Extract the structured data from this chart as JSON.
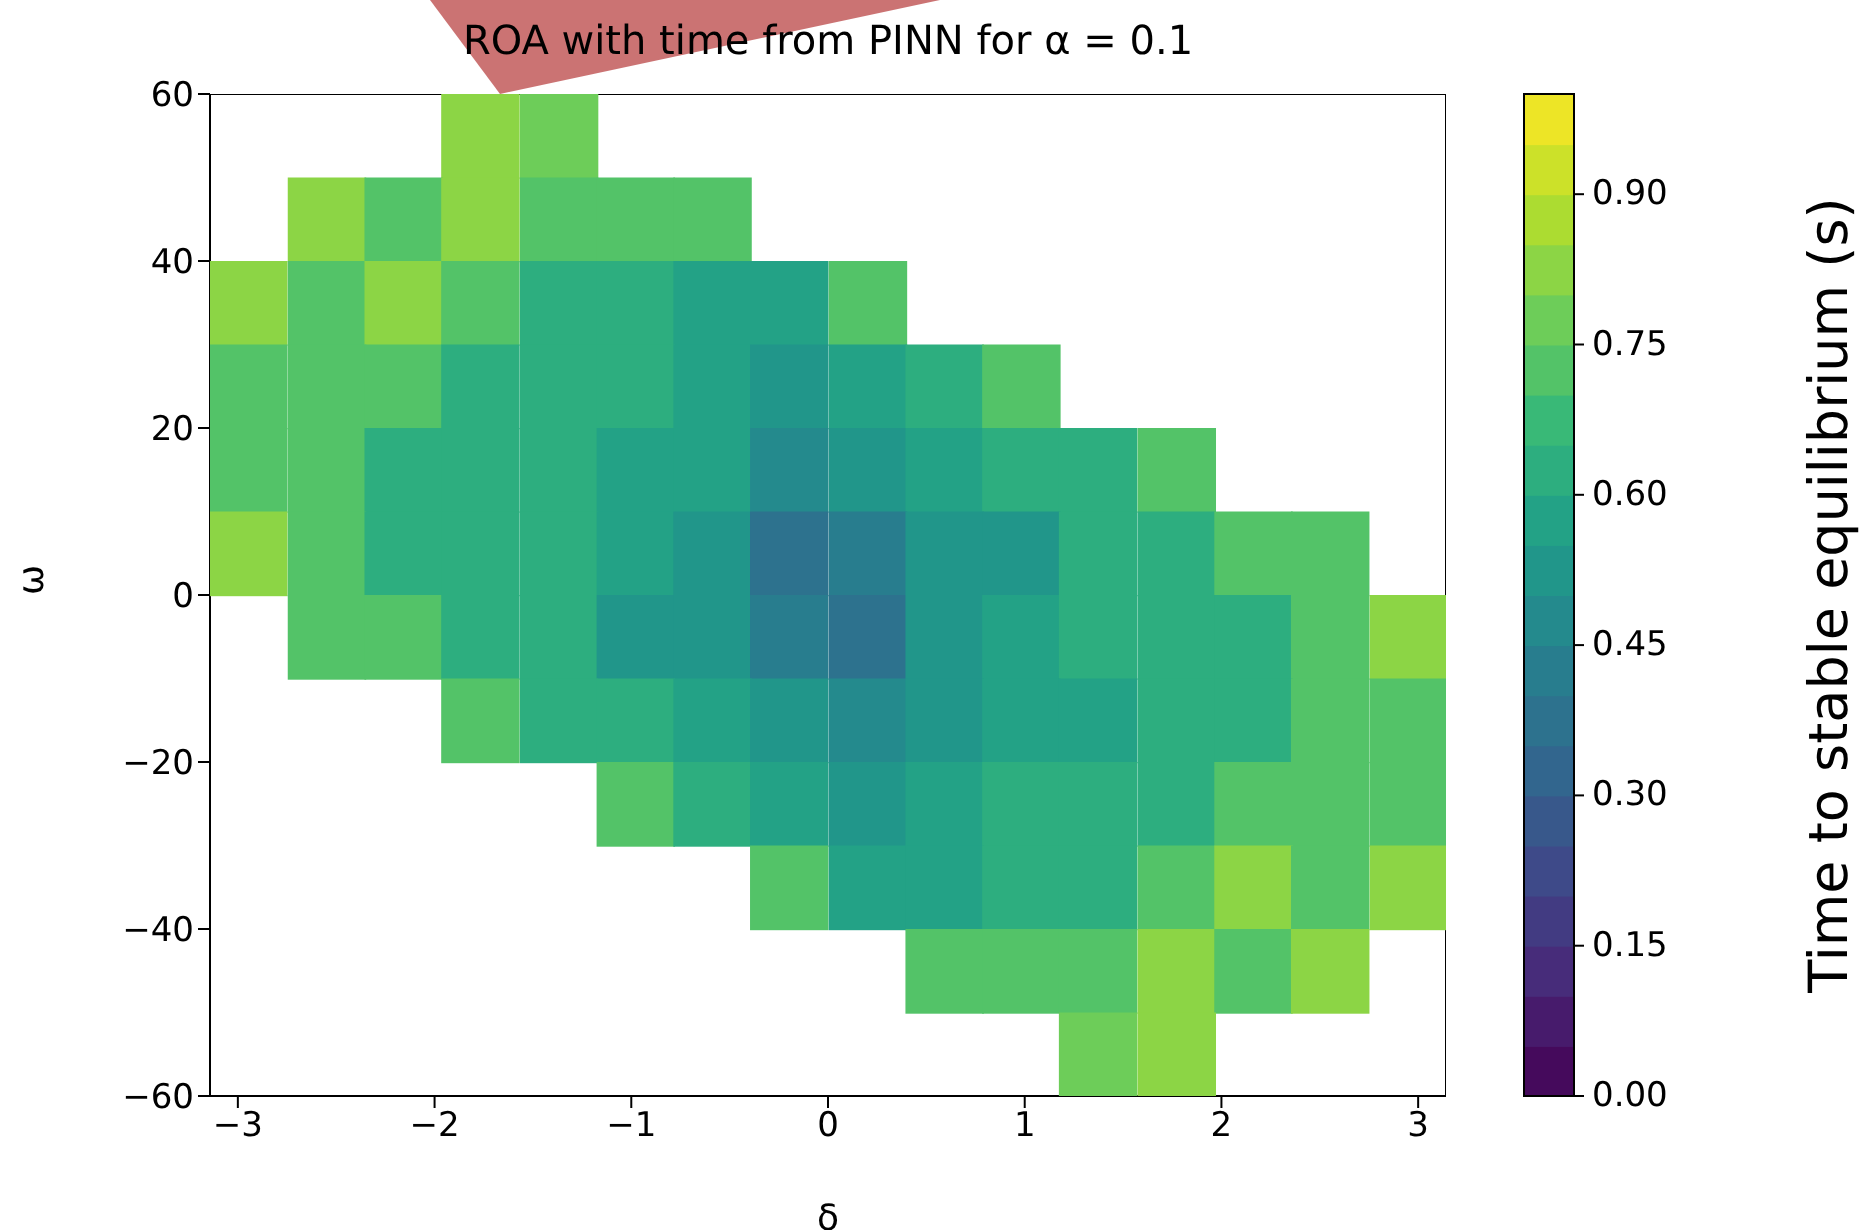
{
  "chart_data": {
    "type": "scatter",
    "title": "ROA with time from PINN for α = 0.1",
    "xlabel": "δ",
    "ylabel": "ω",
    "clabel": "Time to stable equilibrium (s)",
    "marker": "square",
    "xlim": [
      -3.1416,
      3.1416
    ],
    "xticks": [
      {
        "value": -3,
        "label": "−3"
      },
      {
        "value": -2,
        "label": "−2"
      },
      {
        "value": -1,
        "label": "−1"
      },
      0,
      1,
      2,
      3
    ],
    "ylim": [
      -60,
      60
    ],
    "yticks": [
      {
        "value": -60,
        "label": "−60"
      },
      {
        "value": -40,
        "label": "−40"
      },
      {
        "value": -20,
        "label": "−20"
      },
      0,
      20,
      40,
      60
    ],
    "clim": [
      0,
      1
    ],
    "cticks": [
      {
        "value": 0,
        "label": "0.00"
      },
      0.15,
      {
        "value": 0.3,
        "label": "0.30"
      },
      0.45,
      {
        "value": 0.6,
        "label": "0.60"
      },
      0.75,
      {
        "value": 0.9,
        "label": "0.90"
      }
    ],
    "x": [
      -1.77,
      -1.37,
      -2.55,
      -2.16,
      -1.77,
      -1.37,
      -0.98,
      -0.59,
      -2.95,
      -2.55,
      -2.16,
      -1.77,
      -1.37,
      -0.98,
      -0.59,
      -0.2,
      0.2,
      -2.95,
      -2.55,
      -2.16,
      -1.77,
      -1.37,
      -0.98,
      -0.59,
      -0.2,
      0.2,
      0.59,
      0.98,
      -2.95,
      -2.55,
      -2.16,
      -1.77,
      -1.37,
      -0.98,
      -0.59,
      -0.2,
      0.2,
      0.59,
      0.98,
      1.37,
      1.77,
      -2.95,
      -2.55,
      -2.16,
      -1.77,
      -1.37,
      -0.98,
      -0.59,
      -0.2,
      0.2,
      0.59,
      0.98,
      1.37,
      1.77,
      2.16,
      2.55,
      -2.55,
      -2.16,
      -1.77,
      -1.37,
      -0.98,
      -0.59,
      -0.2,
      0.2,
      0.59,
      0.98,
      1.37,
      1.77,
      2.16,
      2.55,
      2.95,
      -1.77,
      -1.37,
      -0.98,
      -0.59,
      -0.2,
      0.2,
      0.59,
      0.98,
      1.37,
      1.77,
      2.16,
      2.55,
      2.95,
      -0.98,
      -0.59,
      -0.2,
      0.2,
      0.59,
      0.98,
      1.37,
      1.77,
      2.16,
      2.55,
      2.95,
      -0.2,
      0.2,
      0.59,
      0.98,
      1.37,
      1.77,
      2.16,
      2.55,
      2.95,
      0.59,
      0.98,
      1.37,
      1.77,
      2.16,
      2.55,
      1.37,
      1.77
    ],
    "values": [
      55,
      55,
      45,
      45,
      45,
      45,
      45,
      45,
      35,
      35,
      35,
      35,
      35,
      35,
      35,
      35,
      35,
      25,
      25,
      25,
      25,
      25,
      25,
      25,
      25,
      25,
      25,
      25,
      15,
      15,
      15,
      15,
      15,
      15,
      15,
      15,
      15,
      15,
      15,
      15,
      15,
      5,
      5,
      5,
      5,
      5,
      5,
      5,
      5,
      5,
      5,
      5,
      5,
      5,
      5,
      5,
      -5,
      -5,
      -5,
      -5,
      -5,
      -5,
      -5,
      -5,
      -5,
      -5,
      -5,
      -5,
      -5,
      -5,
      -5,
      -15,
      -15,
      -15,
      -15,
      -15,
      -15,
      -15,
      -15,
      -15,
      -15,
      -15,
      -15,
      -15,
      -25,
      -25,
      -25,
      -25,
      -25,
      -25,
      -25,
      -25,
      -25,
      -25,
      -25,
      -35,
      -35,
      -35,
      -35,
      -35,
      -35,
      -35,
      -35,
      -35,
      -45,
      -45,
      -45,
      -45,
      -45,
      -45,
      -55,
      -55
    ],
    "cvalues": [
      0.8,
      0.75,
      0.8,
      0.7,
      0.8,
      0.7,
      0.7,
      0.7,
      0.8,
      0.7,
      0.8,
      0.7,
      0.6,
      0.6,
      0.55,
      0.55,
      0.7,
      0.7,
      0.7,
      0.7,
      0.6,
      0.6,
      0.6,
      0.55,
      0.5,
      0.55,
      0.6,
      0.7,
      0.7,
      0.7,
      0.6,
      0.6,
      0.6,
      0.55,
      0.55,
      0.45,
      0.5,
      0.55,
      0.6,
      0.6,
      0.7,
      0.8,
      0.7,
      0.6,
      0.6,
      0.6,
      0.55,
      0.5,
      0.35,
      0.4,
      0.5,
      0.5,
      0.6,
      0.6,
      0.7,
      0.7,
      0.7,
      0.7,
      0.6,
      0.6,
      0.5,
      0.5,
      0.4,
      0.35,
      0.5,
      0.55,
      0.6,
      0.6,
      0.6,
      0.7,
      0.8,
      0.7,
      0.6,
      0.6,
      0.55,
      0.5,
      0.45,
      0.5,
      0.55,
      0.55,
      0.6,
      0.6,
      0.7,
      0.7,
      0.7,
      0.6,
      0.55,
      0.5,
      0.55,
      0.6,
      0.6,
      0.6,
      0.7,
      0.7,
      0.7,
      0.7,
      0.55,
      0.55,
      0.6,
      0.6,
      0.7,
      0.8,
      0.7,
      0.8,
      0.7,
      0.7,
      0.7,
      0.8,
      0.7,
      0.8,
      0.75,
      0.8
    ]
  }
}
